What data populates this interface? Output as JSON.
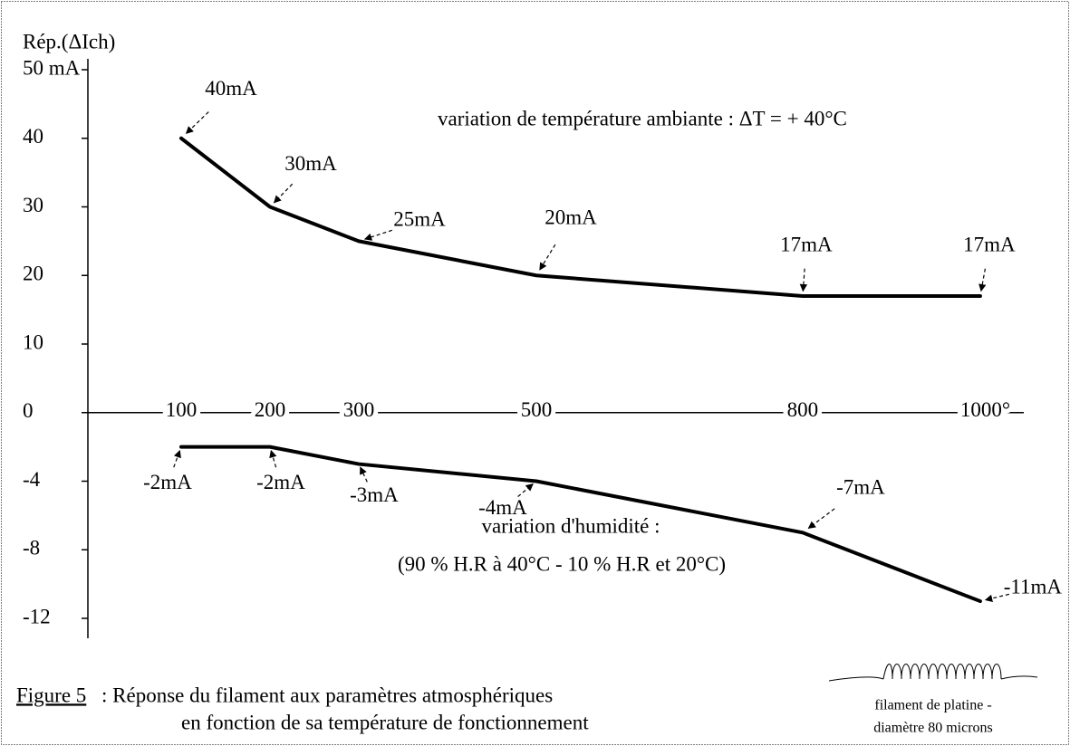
{
  "chart_data": {
    "type": "line",
    "y_label": "Rép.(ΔIch)",
    "x": [
      100,
      200,
      300,
      500,
      800,
      1000
    ],
    "xlim": [
      0,
      1045
    ],
    "xticks": [
      100,
      200,
      300,
      500,
      800,
      {
        "value": 1000,
        "label": "1000°"
      }
    ],
    "ylim": [
      -12,
      50
    ],
    "yticks": [
      {
        "value": 50,
        "label": "50 mA"
      },
      40,
      30,
      20,
      10,
      0,
      -4,
      -8,
      -12
    ],
    "series": [
      {
        "name": "variation de température ambiante : ΔT = + 40°C",
        "color": "#000000",
        "values": [
          40,
          30,
          25,
          20,
          17,
          17
        ],
        "value_labels": [
          "40mA",
          "30mA",
          "25mA",
          "20mA",
          "17mA",
          "17mA"
        ]
      },
      {
        "name": "variation d'humidité :",
        "color": "#000000",
        "values": [
          -2,
          -2,
          -3,
          -4,
          -7,
          -11
        ],
        "value_labels": [
          "-2mA",
          "-2mA",
          "-3mA",
          "-4mA",
          "-7mA",
          "-11mA"
        ]
      }
    ],
    "annotations": [
      "(90 % H.R à 40°C - 10 % H.R et 20°C)"
    ],
    "caption": {
      "label": "Figure 5",
      "line1": ": Réponse du filament aux paramètres atmosphériques",
      "line2": "en fonction de sa température de fonctionnement"
    },
    "inset": [
      "filament de platine -",
      "diamètre 80 microns"
    ]
  }
}
